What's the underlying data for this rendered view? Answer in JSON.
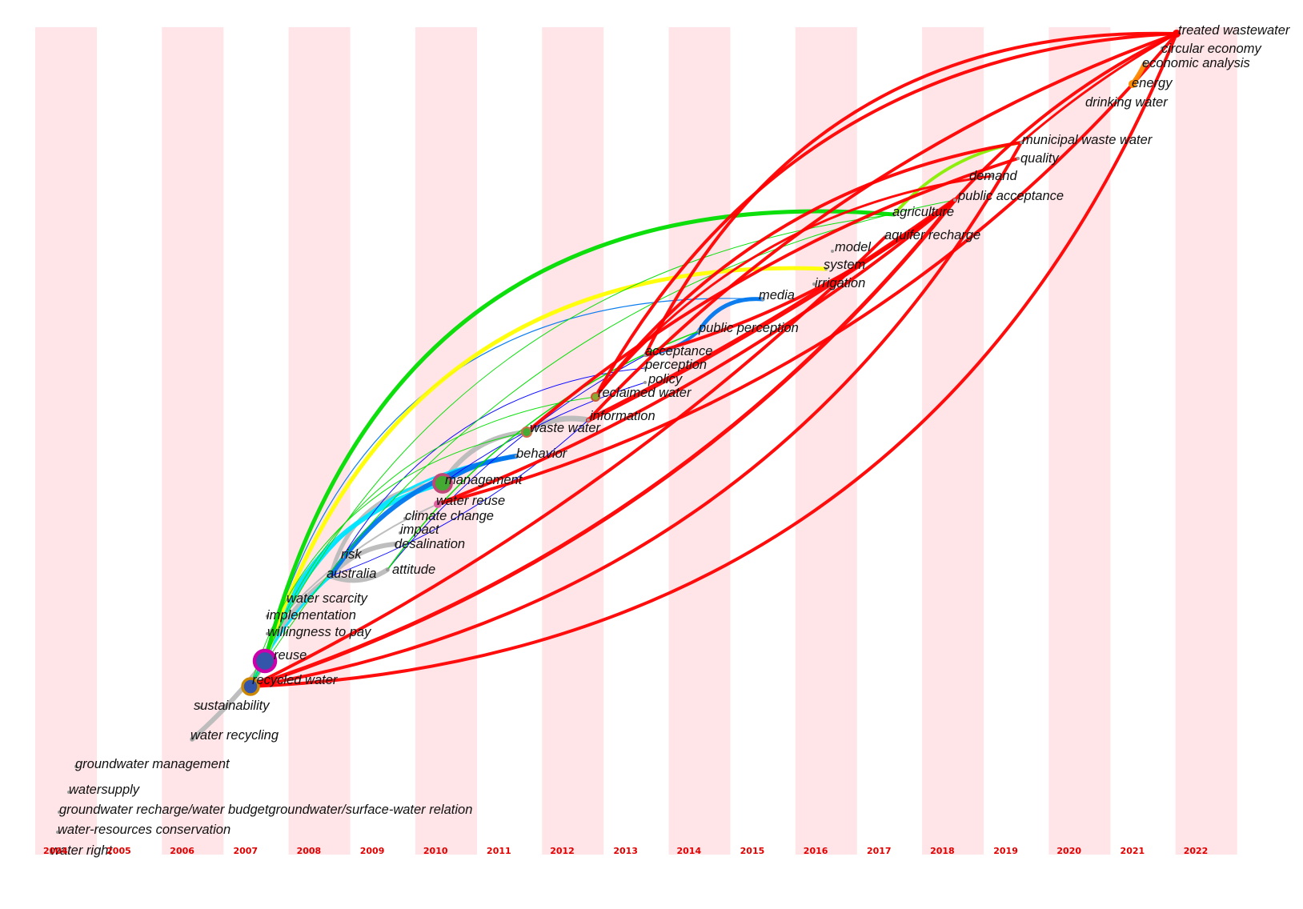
{
  "timeline": {
    "years": [
      "2004",
      "2005",
      "2006",
      "2007",
      "2008",
      "2009",
      "2010",
      "2011",
      "2012",
      "2013",
      "2014",
      "2015",
      "2016",
      "2017",
      "2018",
      "2019",
      "2020",
      "2021",
      "2022"
    ],
    "stripe_color": "#ffe4e8",
    "year_color": "#e10000"
  },
  "terms": [
    {
      "label": "treated wastewater",
      "year": "2021",
      "node_color": "#ff0000"
    },
    {
      "label": "circular economy",
      "year": "2021"
    },
    {
      "label": "economic analysis",
      "year": "2021"
    },
    {
      "label": "energy",
      "year": "2021",
      "node_color": "#ff8c00"
    },
    {
      "label": "drinking water",
      "year": "2020"
    },
    {
      "label": "municipal waste water",
      "year": "2019"
    },
    {
      "label": "quality",
      "year": "2019"
    },
    {
      "label": "demand",
      "year": "2018"
    },
    {
      "label": "public acceptance",
      "year": "2018"
    },
    {
      "label": "agriculture",
      "year": "2017"
    },
    {
      "label": "aquifer recharge",
      "year": "2017"
    },
    {
      "label": "model",
      "year": "2016"
    },
    {
      "label": "system",
      "year": "2016"
    },
    {
      "label": "irrigation",
      "year": "2016"
    },
    {
      "label": "media",
      "year": "2015"
    },
    {
      "label": "public perception",
      "year": "2014"
    },
    {
      "label": "acceptance",
      "year": "2013"
    },
    {
      "label": "perception",
      "year": "2013"
    },
    {
      "label": "policy",
      "year": "2013"
    },
    {
      "label": "reclaimed water",
      "year": "2012",
      "node_color": "#cc5533"
    },
    {
      "label": "information",
      "year": "2012"
    },
    {
      "label": "waste water",
      "year": "2011",
      "node_color": "#d06a4a"
    },
    {
      "label": "behavior",
      "year": "2010"
    },
    {
      "label": "management",
      "year": "2010",
      "node_color": "#c04878"
    },
    {
      "label": "water reuse",
      "year": "2010",
      "node_color": "#e060a0"
    },
    {
      "label": "climate change",
      "year": "2010"
    },
    {
      "label": "impact",
      "year": "2010"
    },
    {
      "label": "desalination",
      "year": "2009"
    },
    {
      "label": "risk",
      "year": "2008"
    },
    {
      "label": "australia",
      "year": "2008"
    },
    {
      "label": "attitude",
      "year": "2009"
    },
    {
      "label": "water scarcity",
      "year": "2008"
    },
    {
      "label": "implementation",
      "year": "2007"
    },
    {
      "label": "willingness to pay",
      "year": "2007"
    },
    {
      "label": "reuse",
      "year": "2007",
      "node_color": "#cc00aa"
    },
    {
      "label": "recycled water",
      "year": "2007",
      "node_color": "#55aa33"
    },
    {
      "label": "sustainability",
      "year": "2006"
    },
    {
      "label": "water recycling",
      "year": "2006"
    },
    {
      "label": "groundwater management",
      "year": "2004"
    },
    {
      "label": "watersupply",
      "year": "2004"
    },
    {
      "label": "groundwater recharge/water budgetgroundwater/surface-water relation",
      "year": "2004"
    },
    {
      "label": "water-resources conservation",
      "year": "2004"
    },
    {
      "label": "water right",
      "year": "2004"
    }
  ],
  "link_colors": {
    "2004-2007": "#bbbbbb",
    "2008-2009": "#00e5ff",
    "2010-2011": "#0077ee",
    "2012-2013": "#0000ff",
    "2016": "#ffff00",
    "2017": "#00dd00",
    "2019": "#88ee00",
    "2020-2022": "#ff0000",
    "energy": "#ff8800"
  }
}
